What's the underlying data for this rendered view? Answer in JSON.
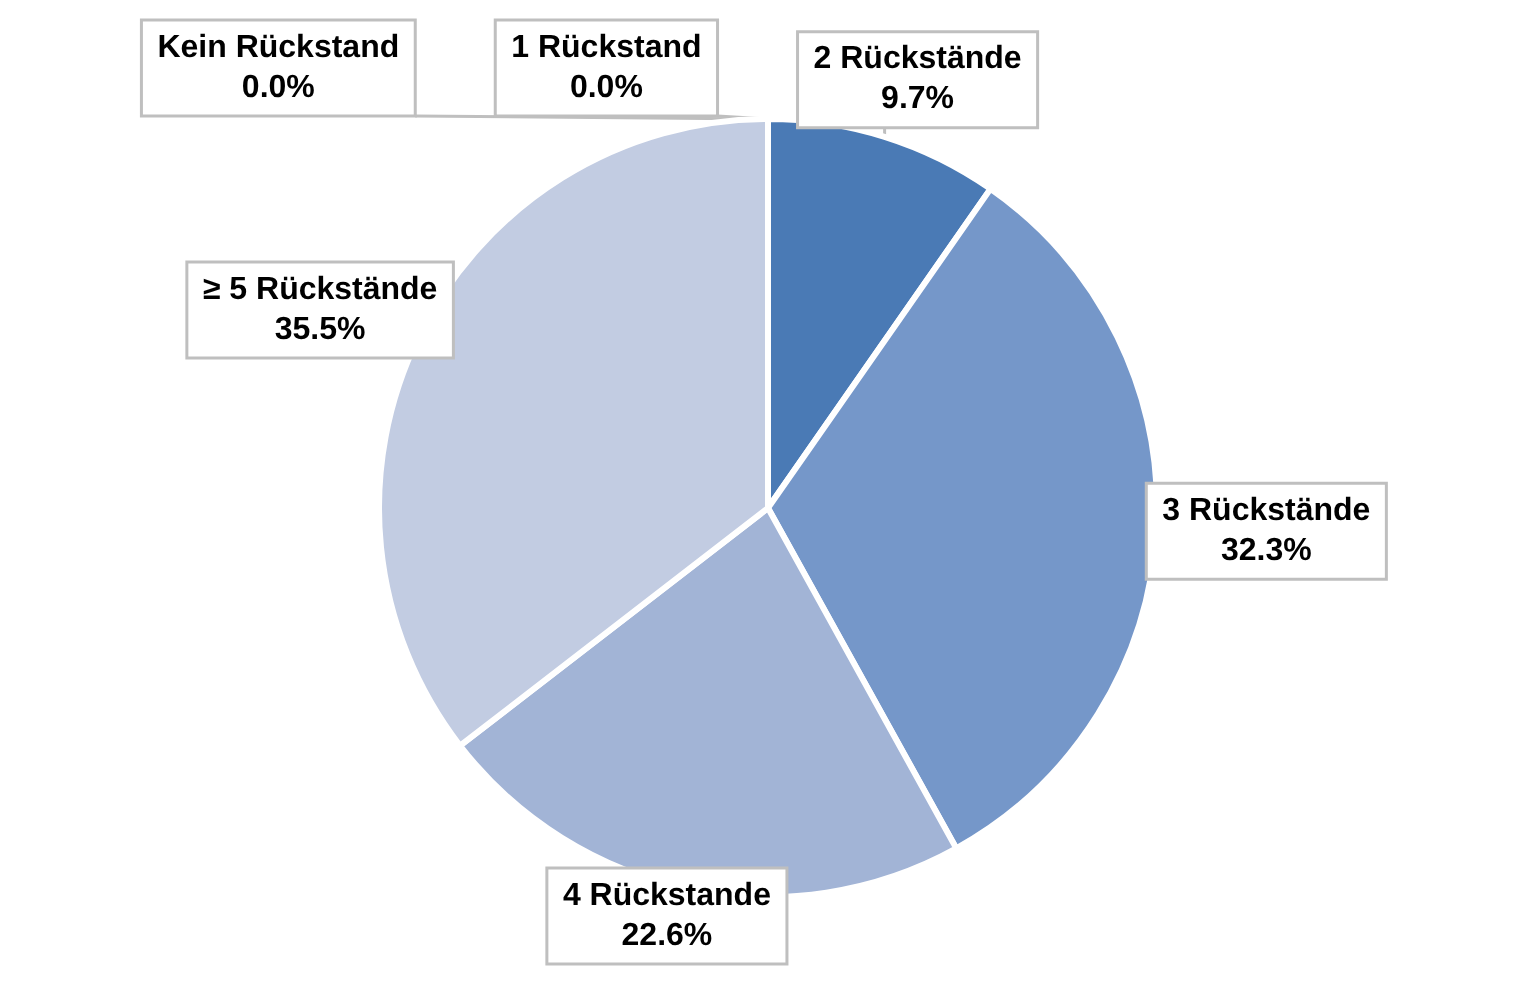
{
  "chart_data": {
    "type": "pie",
    "categories": [
      "Kein Rückstand",
      "1 Rückstand",
      "2 Rückstände",
      "3 Rückstände",
      "4 Rückstande",
      "≥ 5 Rückstände"
    ],
    "values": [
      0.0,
      0.0,
      9.7,
      32.3,
      22.6,
      35.5
    ],
    "colors": [
      "#3a66a0",
      "#2f5a90",
      "#4a7ab5",
      "#7597c9",
      "#a2b4d6",
      "#c2cce2"
    ],
    "value_labels": [
      "0.0%",
      "0.0%",
      "9.7%",
      "32.3%",
      "22.6%",
      "35.5%"
    ],
    "legend": false
  }
}
